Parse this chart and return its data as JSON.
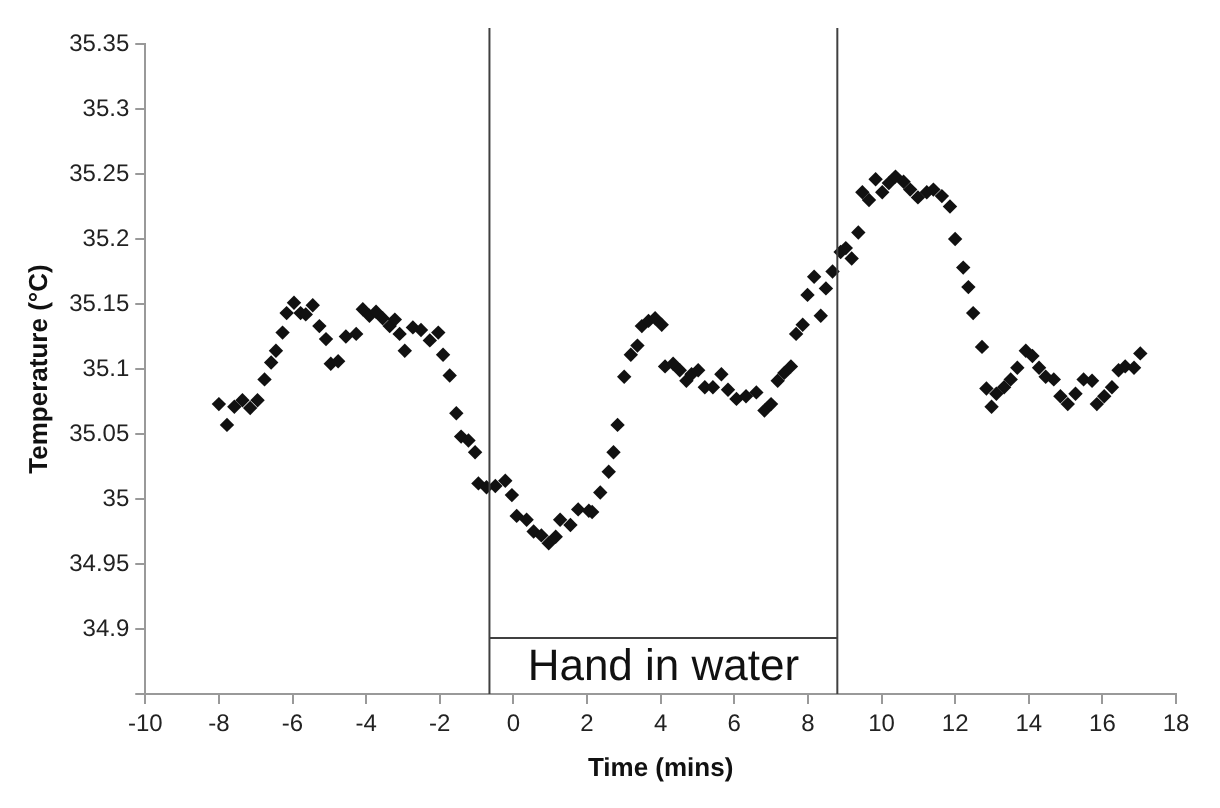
{
  "chart_data": {
    "type": "scatter",
    "xlabel": "Time (mins)",
    "ylabel": "Temperature (°C)",
    "xlim": [
      -10,
      18
    ],
    "xticks": [
      -10,
      -8,
      -6,
      -4,
      -2,
      0,
      2,
      4,
      6,
      8,
      10,
      12,
      14,
      16,
      18
    ],
    "ylim": [
      34.85,
      35.35
    ],
    "yticks": [
      {
        "value": 34.85,
        "label": null
      },
      34.9,
      34.95,
      35,
      35.05,
      35.1,
      35.15,
      35.2,
      35.25,
      35.3,
      35.35
    ],
    "grid": false,
    "legend": false,
    "marker": "diamond",
    "ref_lines": [
      {
        "axis": "x",
        "value": -0.65,
        "color": "#404040"
      },
      {
        "axis": "x",
        "value": 8.8,
        "color": "#404040"
      }
    ],
    "annotations": [
      "Hand in water"
    ],
    "series": [
      {
        "color": "#111111",
        "x": [
          -8,
          -7.78,
          -7.58,
          -7.36,
          -7.15,
          -6.95,
          -6.76,
          -6.58,
          -6.45,
          -6.27,
          -6.16,
          -5.96,
          -5.78,
          -5.64,
          -5.45,
          -5.27,
          -5.09,
          -4.96,
          -4.76,
          -4.55,
          -4.27,
          -4.09,
          -3.91,
          -3.73,
          -3.55,
          -3.36,
          -3.22,
          -3.09,
          -2.95,
          -2.73,
          -2.51,
          -2.27,
          -2.04,
          -1.91,
          -1.73,
          -1.55,
          -1.42,
          -1.22,
          -1.04,
          -0.95,
          -0.73,
          -0.49,
          -0.22,
          -0.04,
          0.09,
          0.36,
          0.55,
          0.76,
          0.96,
          1.15,
          1.27,
          1.55,
          1.76,
          2.05,
          2.14,
          2.36,
          2.59,
          2.72,
          2.83,
          3.01,
          3.19,
          3.37,
          3.49,
          3.67,
          3.85,
          4.03,
          4.12,
          4.34,
          4.52,
          4.7,
          4.84,
          5.02,
          5.2,
          5.42,
          5.65,
          5.83,
          6.06,
          6.32,
          6.6,
          6.82,
          7,
          7.18,
          7.36,
          7.54,
          7.68,
          7.86,
          7.99,
          8.17,
          8.35,
          8.49,
          8.67,
          8.89,
          9.03,
          9.19,
          9.37,
          9.48,
          9.66,
          9.84,
          10.02,
          10.2,
          10.38,
          10.6,
          10.78,
          10.99,
          11.23,
          11.41,
          11.64,
          11.86,
          12,
          12.22,
          12.36,
          12.49,
          12.73,
          12.85,
          12.99,
          13.12,
          13.33,
          13.51,
          13.69,
          13.92,
          14.1,
          14.28,
          14.46,
          14.68,
          14.86,
          15.06,
          15.27,
          15.49,
          15.72,
          15.85,
          16.05,
          16.26,
          16.44,
          16.62,
          16.86,
          17.03
        ],
        "values": [
          35.073,
          35.057,
          35.071,
          35.076,
          35.07,
          35.076,
          35.092,
          35.105,
          35.114,
          35.128,
          35.143,
          35.151,
          35.143,
          35.142,
          35.149,
          35.133,
          35.123,
          35.104,
          35.106,
          35.125,
          35.127,
          35.146,
          35.141,
          35.144,
          35.139,
          35.133,
          35.138,
          35.127,
          35.114,
          35.132,
          35.13,
          35.122,
          35.128,
          35.111,
          35.095,
          35.066,
          35.048,
          35.045,
          35.036,
          35.012,
          35.009,
          35.01,
          35.014,
          35.003,
          34.987,
          34.984,
          34.975,
          34.972,
          34.966,
          34.971,
          34.984,
          34.98,
          34.992,
          34.991,
          34.99,
          35.005,
          35.021,
          35.036,
          35.057,
          35.094,
          35.111,
          35.118,
          35.133,
          35.137,
          35.139,
          35.134,
          35.102,
          35.104,
          35.099,
          35.091,
          35.096,
          35.099,
          35.086,
          35.086,
          35.096,
          35.084,
          35.077,
          35.079,
          35.082,
          35.068,
          35.073,
          35.091,
          35.097,
          35.102,
          35.127,
          35.134,
          35.157,
          35.171,
          35.141,
          35.162,
          35.175,
          35.19,
          35.193,
          35.185,
          35.205,
          35.236,
          35.23,
          35.246,
          35.236,
          35.243,
          35.248,
          35.244,
          35.238,
          35.232,
          35.236,
          35.238,
          35.233,
          35.225,
          35.2,
          35.178,
          35.163,
          35.143,
          35.117,
          35.085,
          35.071,
          35.081,
          35.086,
          35.092,
          35.101,
          35.114,
          35.11,
          35.101,
          35.094,
          35.092,
          35.079,
          35.073,
          35.081,
          35.092,
          35.091,
          35.073,
          35.079,
          35.086,
          35.099,
          35.102,
          35.101,
          35.112
        ]
      }
    ]
  }
}
